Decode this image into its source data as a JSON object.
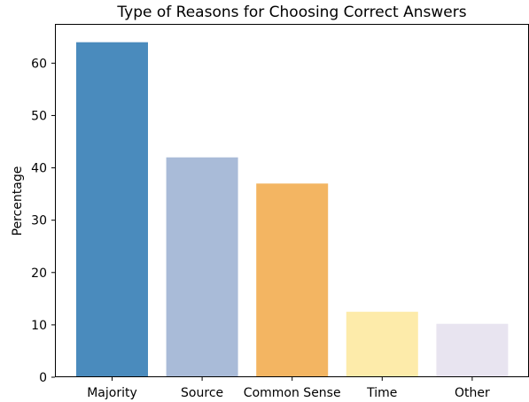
{
  "chart_data": {
    "type": "bar",
    "title": "Type of Reasons for Choosing Correct Answers",
    "xlabel": "",
    "ylabel": "Percentage",
    "categories": [
      "Majority",
      "Source",
      "Common Sense",
      "Time",
      "Other"
    ],
    "values": [
      64,
      42,
      37,
      12.5,
      10.2
    ],
    "colors": [
      "#4a8bbd",
      "#a9bbd8",
      "#f3b562",
      "#fdebaa",
      "#e8e4f0"
    ],
    "ylim": [
      0,
      67.5
    ],
    "yticks": [
      0,
      10,
      20,
      30,
      40,
      50,
      60
    ],
    "grid": false,
    "legend": "none"
  }
}
